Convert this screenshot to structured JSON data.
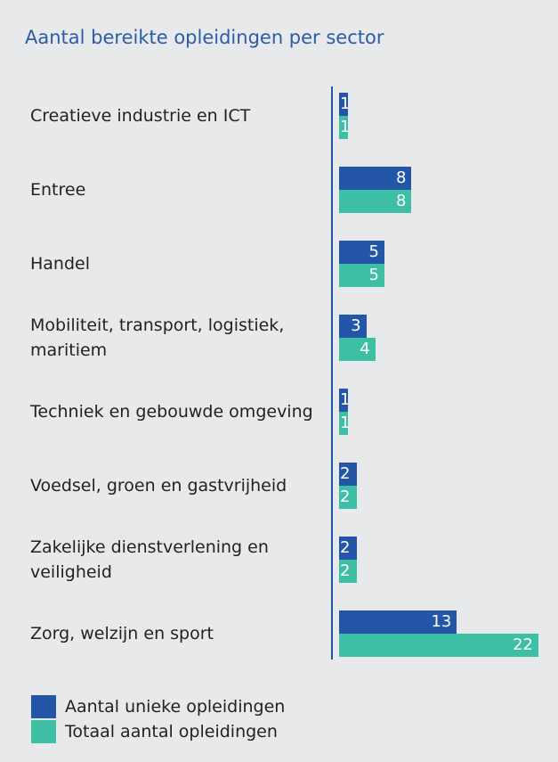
{
  "chart_data": {
    "type": "bar",
    "orientation": "horizontal",
    "title": "Aantal bereikte opleidingen per sector",
    "categories": [
      "Creatieve industrie en ICT",
      "Entree",
      "Handel",
      "Mobiliteit, transport, logistiek, maritiem",
      "Techniek en gebouwde omgeving",
      "Voedsel, groen en gastvrijheid",
      "Zakelijke dienstverlening en veiligheid",
      "Zorg, welzijn en sport"
    ],
    "series": [
      {
        "name": "Aantal unieke opleidingen",
        "color": "#2356a6",
        "values": [
          1,
          8,
          5,
          3,
          1,
          2,
          2,
          13
        ]
      },
      {
        "name": "Totaal aantal opleidingen",
        "color": "#3dbfa5",
        "values": [
          1,
          8,
          5,
          4,
          1,
          2,
          2,
          22
        ]
      }
    ]
  }
}
